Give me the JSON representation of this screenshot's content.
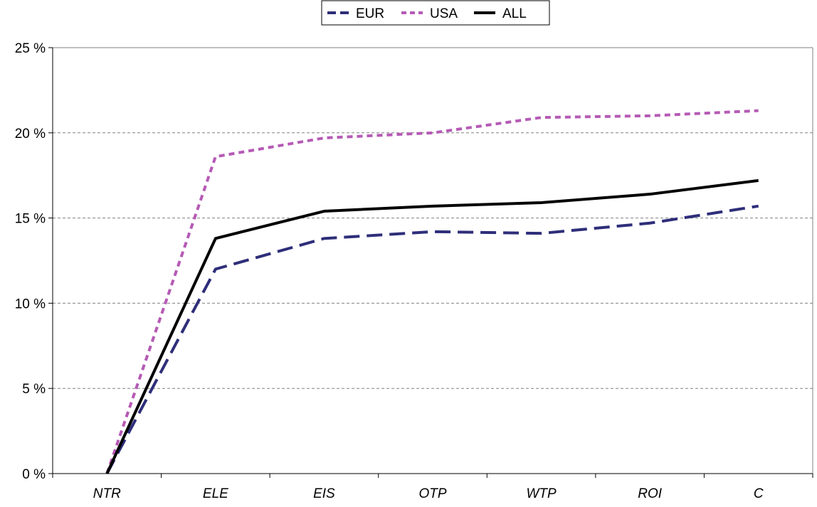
{
  "chart_data": {
    "type": "line",
    "categories": [
      "NTR",
      "ELE",
      "EIS",
      "OTP",
      "WTP",
      "ROI",
      "C"
    ],
    "y_tick_labels": [
      "0 %",
      "5 %",
      "10 %",
      "15 %",
      "20 %",
      "25 %"
    ],
    "y_ticks": [
      0,
      5,
      10,
      15,
      20,
      25
    ],
    "ylim": [
      0,
      25
    ],
    "grid": "horizontal dashed",
    "legend_position": "top-center",
    "series": [
      {
        "name": "EUR",
        "color": "#2e2e7a",
        "style": "long-dash",
        "values": [
          0,
          12.0,
          13.8,
          14.2,
          14.1,
          14.7,
          15.7
        ]
      },
      {
        "name": "USA",
        "color": "#b55ab5",
        "style": "dotted",
        "values": [
          0,
          18.6,
          19.7,
          20.0,
          20.9,
          21.0,
          21.3
        ]
      },
      {
        "name": "ALL",
        "color": "#000000",
        "style": "solid",
        "values": [
          0,
          13.8,
          15.4,
          15.7,
          15.9,
          16.4,
          17.2
        ]
      }
    ]
  }
}
